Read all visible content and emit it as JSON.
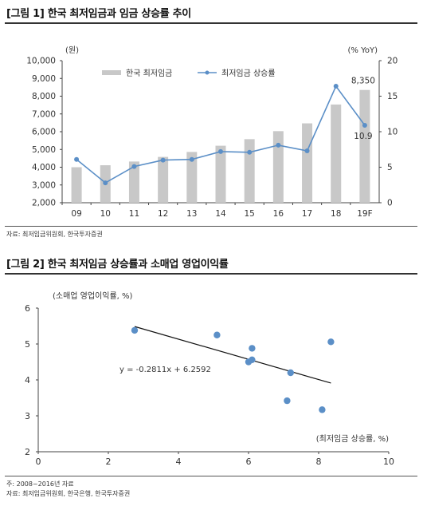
{
  "figure1": {
    "title": "[그림 1] 한국 최저임금과 임금 상승률 추이",
    "source": "자료: 최저임금위원회, 한국투자증권",
    "chart_data": {
      "type": "bar+line",
      "categories": [
        "09",
        "10",
        "11",
        "12",
        "13",
        "14",
        "15",
        "16",
        "17",
        "18",
        "19F"
      ],
      "left_axis_unit": "(원)",
      "right_axis_unit": "(% YoY)",
      "left_ylim": [
        2000,
        10000
      ],
      "left_ticks": [
        "2,000",
        "3,000",
        "4,000",
        "5,000",
        "6,000",
        "7,000",
        "8,000",
        "9,000",
        "10,000"
      ],
      "right_ylim": [
        0,
        20
      ],
      "right_ticks": [
        "0",
        "5",
        "10",
        "15",
        "20"
      ],
      "series": [
        {
          "name": "한국 최저임금",
          "type": "bar",
          "color": "#c8c8c8",
          "values": [
            4000,
            4110,
            4320,
            4580,
            4860,
            5210,
            5580,
            6030,
            6470,
            7530,
            8350
          ]
        },
        {
          "name": "최저임금 상승률",
          "type": "line",
          "color": "#5b8fc7",
          "values": [
            6.1,
            2.8,
            5.1,
            6.0,
            6.1,
            7.2,
            7.1,
            8.1,
            7.3,
            16.4,
            10.9
          ]
        }
      ],
      "annotations": [
        {
          "text": "8,350",
          "category": "19F",
          "series": "한국 최저임금"
        },
        {
          "text": "10.9",
          "category": "19F",
          "series": "최저임금 상승률"
        }
      ],
      "legend": "top"
    }
  },
  "figure2": {
    "title": "[그림 2] 한국 최저임금 상승률과 소매업 영업이익률",
    "note1": "주: 2008~2016년 자료",
    "note2": "자료: 최저임금위원회, 한국은행, 한국투자증권",
    "chart_data": {
      "type": "scatter",
      "ylabel": "(소매업 영업이익률, %)",
      "xlabel": "(최저임금 상승률, %)",
      "xlim": [
        0,
        10
      ],
      "ylim": [
        2,
        6
      ],
      "xticks": [
        "0",
        "2",
        "4",
        "6",
        "8",
        "10"
      ],
      "yticks": [
        "2",
        "3",
        "4",
        "5",
        "6"
      ],
      "points": [
        {
          "x": 2.75,
          "y": 5.38
        },
        {
          "x": 5.1,
          "y": 5.25
        },
        {
          "x": 6.1,
          "y": 4.88
        },
        {
          "x": 6.0,
          "y": 4.5
        },
        {
          "x": 6.1,
          "y": 4.56
        },
        {
          "x": 7.2,
          "y": 4.2
        },
        {
          "x": 7.1,
          "y": 3.42
        },
        {
          "x": 8.1,
          "y": 3.17
        },
        {
          "x": 8.35,
          "y": 5.06
        }
      ],
      "trendline": {
        "slope": -0.2811,
        "intercept": 6.2592,
        "label": "y = -0.2811x + 6.2592",
        "x_range": [
          2.75,
          8.35
        ]
      },
      "color": "#5b8fc7"
    }
  }
}
